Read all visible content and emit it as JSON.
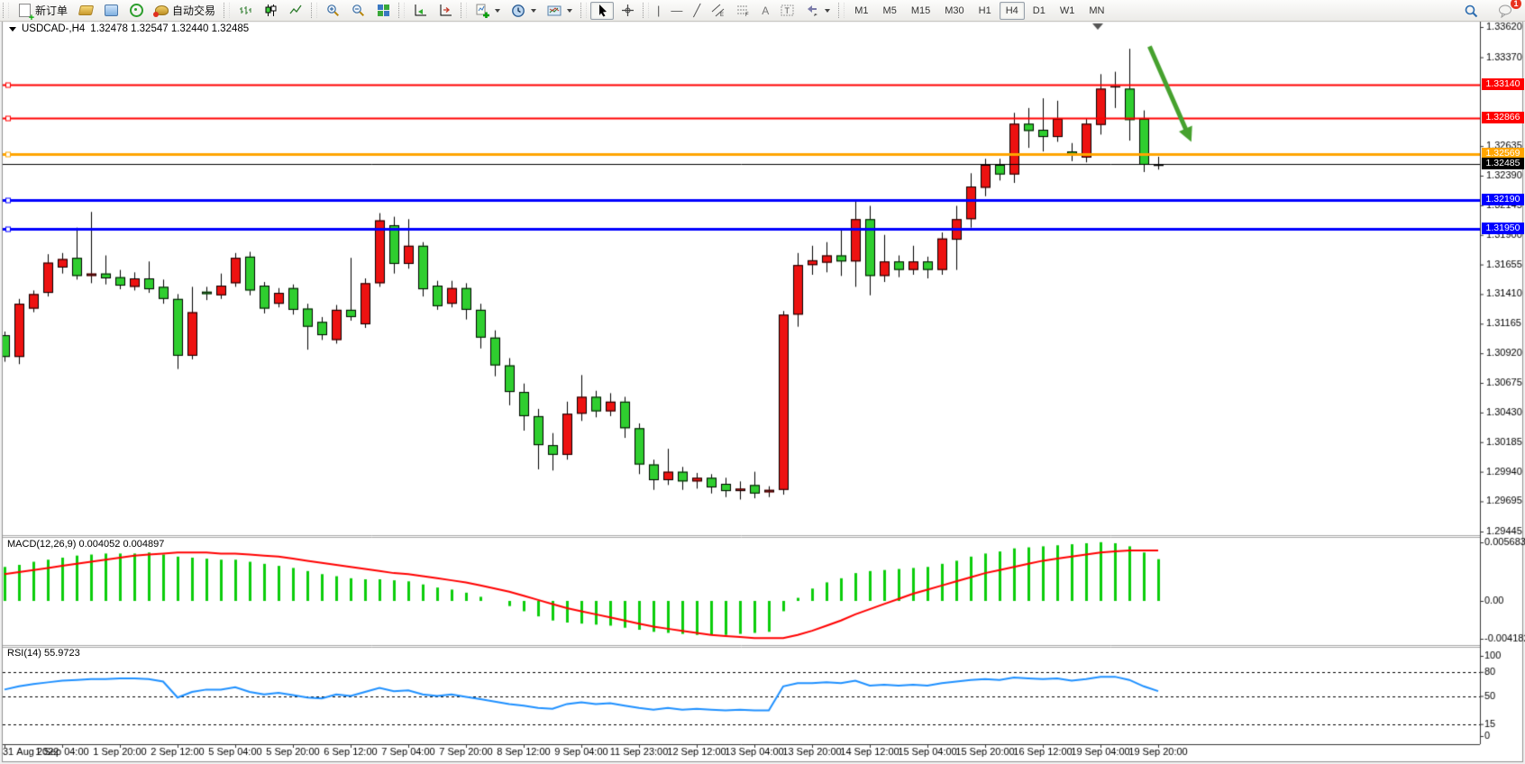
{
  "toolbar": {
    "new_order_label": "新订单",
    "autotrading_label": "自动交易",
    "timeframes": [
      "M1",
      "M5",
      "M15",
      "M30",
      "H1",
      "H4",
      "D1",
      "W1",
      "MN"
    ],
    "active_timeframe": "H4",
    "notifications_badge": "1",
    "icons": [
      "new-order",
      "new-chart",
      "market-watch",
      "signals",
      "autotrading",
      "bar-chart",
      "candlestick-chart",
      "line-chart",
      "zoom-in",
      "zoom-out",
      "tile-windows",
      "auto-scroll",
      "chart-shift",
      "indicators",
      "periods",
      "templates",
      "cursor",
      "crosshair",
      "vertical-line",
      "horizontal-line",
      "trendline",
      "equidistant-channel",
      "fibonacci",
      "text",
      "text-label",
      "arrows",
      "search",
      "notifications"
    ]
  },
  "chart": {
    "symbol": "USDCAD-,H4",
    "ohlc": "1.32478 1.32547 1.32440 1.32485"
  },
  "macd": {
    "name": "MACD(12,26,9)",
    "main": "0.004052",
    "signal": "0.004897",
    "axis": [
      "0.005683",
      "0.00",
      "-0.004182"
    ]
  },
  "rsi": {
    "name": "RSI(14)",
    "value": "55.9723",
    "levels": [
      100,
      80,
      50,
      15,
      0
    ],
    "dashed_levels": [
      80,
      50,
      15
    ]
  },
  "chart_data": {
    "type": "candlestick",
    "symbol": "USDCAD",
    "timeframe": "H4",
    "title": "USDCAD-,H4  1.32478 1.32547 1.32440 1.32485",
    "colors": {
      "up": "#ED1211",
      "down": "#2FCE2F",
      "wick": "#000000",
      "macd_hist": "#0BCD0B",
      "macd_signal": "#FF0000",
      "rsi": "#1E90FF",
      "arrow": "#46A12E"
    },
    "y_ticks": [
      "1.33620",
      "1.33370",
      "1.32635",
      "1.32390",
      "1.32145",
      "1.31900",
      "1.31655",
      "1.31410",
      "1.31165",
      "1.30920",
      "1.30675",
      "1.30430",
      "1.30185",
      "1.29940",
      "1.29695",
      "1.29445"
    ],
    "x_labels": [
      "31 Aug 2022",
      "1 Sep 04:00",
      "1 Sep 20:00",
      "2 Sep 12:00",
      "5 Sep 04:00",
      "5 Sep 20:00",
      "6 Sep 12:00",
      "7 Sep 04:00",
      "7 Sep 20:00",
      "8 Sep 12:00",
      "9 Sep 04:00",
      "11 Sep 23:00",
      "12 Sep 12:00",
      "13 Sep 04:00",
      "13 Sep 20:00",
      "14 Sep 12:00",
      "15 Sep 04:00",
      "15 Sep 20:00",
      "16 Sep 12:00",
      "19 Sep 04:00",
      "19 Sep 20:00"
    ],
    "h_lines": [
      {
        "price": 1.3314,
        "label": "1.33140",
        "color": "#FF0000",
        "width": 2
      },
      {
        "price": 1.32866,
        "label": "1.32866",
        "color": "#FF0000",
        "width": 2
      },
      {
        "price": 1.32569,
        "label": "1.32569",
        "color": "#FFA500",
        "width": 3
      },
      {
        "price": 1.3219,
        "label": "1.32190",
        "color": "#0000FF",
        "width": 3
      },
      {
        "price": 1.3195,
        "label": "1.31950",
        "color": "#0000FF",
        "width": 3
      }
    ],
    "current_price": {
      "price": 1.32485,
      "label": "1.32485",
      "color": "#000000"
    },
    "arrow": {
      "from_bar": 79.4,
      "from_price": 1.3346,
      "to_bar": 82.3,
      "to_price": 1.3267
    },
    "candles": [
      [
        1.3107,
        1.311,
        1.3085,
        1.3089
      ],
      [
        1.3089,
        1.3137,
        1.3083,
        1.3133
      ],
      [
        1.3129,
        1.3144,
        1.3126,
        1.3141
      ],
      [
        1.3142,
        1.3174,
        1.3139,
        1.3167
      ],
      [
        1.3163,
        1.3175,
        1.3158,
        1.317
      ],
      [
        1.3171,
        1.3196,
        1.3153,
        1.3156
      ],
      [
        1.3156,
        1.3209,
        1.315,
        1.3158
      ],
      [
        1.3158,
        1.3173,
        1.3149,
        1.3154
      ],
      [
        1.3155,
        1.3161,
        1.3145,
        1.3148
      ],
      [
        1.3147,
        1.3159,
        1.3144,
        1.3154
      ],
      [
        1.3154,
        1.3168,
        1.3142,
        1.3145
      ],
      [
        1.3147,
        1.3153,
        1.3133,
        1.3137
      ],
      [
        1.3137,
        1.3141,
        1.3079,
        1.309
      ],
      [
        1.309,
        1.3147,
        1.3087,
        1.3126
      ],
      [
        1.3143,
        1.3147,
        1.3136,
        1.3141
      ],
      [
        1.314,
        1.3158,
        1.3137,
        1.3148
      ],
      [
        1.315,
        1.3175,
        1.3147,
        1.3171
      ],
      [
        1.3172,
        1.3176,
        1.314,
        1.3144
      ],
      [
        1.3148,
        1.3151,
        1.3125,
        1.3129
      ],
      [
        1.3133,
        1.3146,
        1.313,
        1.3142
      ],
      [
        1.3146,
        1.3149,
        1.3124,
        1.3128
      ],
      [
        1.3129,
        1.3133,
        1.3095,
        1.3114
      ],
      [
        1.3118,
        1.3122,
        1.3103,
        1.3107
      ],
      [
        1.3103,
        1.3132,
        1.31,
        1.3128
      ],
      [
        1.3128,
        1.3171,
        1.3119,
        1.3122
      ],
      [
        1.3116,
        1.3154,
        1.3113,
        1.315
      ],
      [
        1.315,
        1.3208,
        1.3147,
        1.3202
      ],
      [
        1.3198,
        1.3205,
        1.3158,
        1.3166
      ],
      [
        1.3166,
        1.3203,
        1.3162,
        1.3181
      ],
      [
        1.3181,
        1.3184,
        1.3139,
        1.3145
      ],
      [
        1.3148,
        1.3152,
        1.3128,
        1.3131
      ],
      [
        1.3133,
        1.3152,
        1.313,
        1.3146
      ],
      [
        1.3146,
        1.315,
        1.312,
        1.3128
      ],
      [
        1.3128,
        1.3133,
        1.3096,
        1.3105
      ],
      [
        1.3105,
        1.3111,
        1.3073,
        1.3082
      ],
      [
        1.3082,
        1.3088,
        1.3049,
        1.306
      ],
      [
        1.306,
        1.3067,
        1.3028,
        1.304
      ],
      [
        1.304,
        1.3046,
        1.2996,
        1.3016
      ],
      [
        1.3016,
        1.3026,
        1.2995,
        1.3008
      ],
      [
        1.3008,
        1.3052,
        1.3004,
        1.3042
      ],
      [
        1.3042,
        1.3074,
        1.3036,
        1.3056
      ],
      [
        1.3056,
        1.3061,
        1.3039,
        1.3044
      ],
      [
        1.3044,
        1.3059,
        1.304,
        1.3052
      ],
      [
        1.3052,
        1.3056,
        1.3022,
        1.303
      ],
      [
        1.303,
        1.3034,
        1.2992,
        1.3
      ],
      [
        1.3,
        1.3004,
        1.2979,
        1.2987
      ],
      [
        1.2987,
        1.3013,
        1.2983,
        1.2994
      ],
      [
        1.2994,
        1.2998,
        1.2979,
        1.2986
      ],
      [
        1.2986,
        1.2993,
        1.298,
        1.2989
      ],
      [
        1.2989,
        1.2992,
        1.2976,
        1.2981
      ],
      [
        1.2984,
        1.2989,
        1.2973,
        1.2978
      ],
      [
        1.2978,
        1.2986,
        1.2971,
        1.298
      ],
      [
        1.2983,
        1.2994,
        1.2972,
        1.2976
      ],
      [
        1.2977,
        1.2982,
        1.2973,
        1.2979
      ],
      [
        1.2979,
        1.3127,
        1.2975,
        1.3124
      ],
      [
        1.3124,
        1.3175,
        1.3114,
        1.3165
      ],
      [
        1.3165,
        1.3181,
        1.3157,
        1.3169
      ],
      [
        1.3167,
        1.3184,
        1.3159,
        1.3173
      ],
      [
        1.3173,
        1.3195,
        1.3156,
        1.3168
      ],
      [
        1.3168,
        1.3218,
        1.3147,
        1.3203
      ],
      [
        1.3203,
        1.3214,
        1.314,
        1.3156
      ],
      [
        1.3156,
        1.319,
        1.3151,
        1.3168
      ],
      [
        1.3168,
        1.3173,
        1.3155,
        1.3161
      ],
      [
        1.3161,
        1.3181,
        1.3157,
        1.3168
      ],
      [
        1.3168,
        1.3172,
        1.3154,
        1.3161
      ],
      [
        1.3161,
        1.3192,
        1.3157,
        1.3187
      ],
      [
        1.3186,
        1.3214,
        1.3161,
        1.3203
      ],
      [
        1.3203,
        1.3241,
        1.3196,
        1.323
      ],
      [
        1.3229,
        1.3253,
        1.3222,
        1.3248
      ],
      [
        1.3248,
        1.3253,
        1.3235,
        1.324
      ],
      [
        1.324,
        1.3291,
        1.3233,
        1.3282
      ],
      [
        1.3282,
        1.3295,
        1.3262,
        1.3276
      ],
      [
        1.3277,
        1.3303,
        1.3259,
        1.3271
      ],
      [
        1.3271,
        1.3301,
        1.3267,
        1.3286
      ],
      [
        1.3259,
        1.3266,
        1.3251,
        1.3257
      ],
      [
        1.3254,
        1.3286,
        1.325,
        1.3282
      ],
      [
        1.3281,
        1.3323,
        1.3273,
        1.3311
      ],
      [
        1.3312,
        1.3325,
        1.3295,
        1.3313
      ],
      [
        1.3311,
        1.3344,
        1.3268,
        1.3285
      ],
      [
        1.3286,
        1.3293,
        1.3242,
        1.3248
      ],
      [
        1.32478,
        1.32547,
        1.3244,
        1.32485
      ]
    ],
    "macd_hist": [
      0.0033,
      0.0035,
      0.0038,
      0.004,
      0.0042,
      0.0044,
      0.0045,
      0.0046,
      0.0046,
      0.0046,
      0.0047,
      0.0045,
      0.0043,
      0.0042,
      0.0041,
      0.004,
      0.004,
      0.0038,
      0.0036,
      0.0034,
      0.0032,
      0.0029,
      0.0026,
      0.0024,
      0.0022,
      0.0021,
      0.0021,
      0.002,
      0.0019,
      0.0016,
      0.0013,
      0.0011,
      0.0008,
      0.0004,
      0.0,
      -0.0005,
      -0.001,
      -0.0015,
      -0.0019,
      -0.0021,
      -0.0022,
      -0.0023,
      -0.0024,
      -0.0026,
      -0.0028,
      -0.003,
      -0.0031,
      -0.0032,
      -0.0033,
      -0.0033,
      -0.0033,
      -0.0032,
      -0.0031,
      -0.003,
      -0.001,
      0.0003,
      0.0012,
      0.0018,
      0.0022,
      0.0027,
      0.0029,
      0.003,
      0.0031,
      0.0032,
      0.0033,
      0.0036,
      0.0039,
      0.0043,
      0.0046,
      0.0048,
      0.0051,
      0.0052,
      0.0053,
      0.0054,
      0.0055,
      0.0056,
      0.0057,
      0.0056,
      0.0053,
      0.0047,
      0.004052
    ],
    "macd_signal": [
      0.0026,
      0.0028,
      0.003,
      0.0032,
      0.0034,
      0.0036,
      0.0038,
      0.004,
      0.0042,
      0.0044,
      0.0045,
      0.0046,
      0.0047,
      0.0047,
      0.0047,
      0.0046,
      0.0046,
      0.0045,
      0.0044,
      0.0043,
      0.0041,
      0.0039,
      0.0037,
      0.0035,
      0.0033,
      0.0031,
      0.0029,
      0.0027,
      0.0026,
      0.0024,
      0.0022,
      0.002,
      0.0018,
      0.0015,
      0.0012,
      0.0009,
      0.0005,
      0.0001,
      -0.0003,
      -0.0007,
      -0.001,
      -0.0013,
      -0.0016,
      -0.0019,
      -0.0022,
      -0.0025,
      -0.0027,
      -0.0029,
      -0.0031,
      -0.0033,
      -0.0034,
      -0.0035,
      -0.0036,
      -0.0036,
      -0.0036,
      -0.0033,
      -0.0029,
      -0.0024,
      -0.0019,
      -0.0013,
      -0.0008,
      -0.0003,
      0.0002,
      0.0007,
      0.0011,
      0.0015,
      0.0019,
      0.0023,
      0.0027,
      0.003,
      0.0033,
      0.0036,
      0.0039,
      0.0041,
      0.0043,
      0.0045,
      0.0047,
      0.0048,
      0.0049,
      0.0049,
      0.004897
    ],
    "rsi_values": [
      58,
      62,
      65,
      67,
      69,
      70,
      71,
      71,
      72,
      72,
      71,
      68,
      48,
      55,
      58,
      58,
      61,
      55,
      52,
      54,
      51,
      48,
      47,
      52,
      50,
      55,
      60,
      56,
      57,
      52,
      50,
      52,
      49,
      46,
      43,
      40,
      38,
      35,
      34,
      40,
      42,
      40,
      41,
      38,
      35,
      33,
      35,
      33,
      34,
      33,
      32,
      33,
      32,
      32,
      62,
      66,
      66,
      67,
      66,
      69,
      63,
      64,
      63,
      64,
      63,
      66,
      68,
      70,
      71,
      70,
      73,
      72,
      71,
      72,
      69,
      71,
      74,
      74,
      70,
      62,
      56
    ]
  }
}
